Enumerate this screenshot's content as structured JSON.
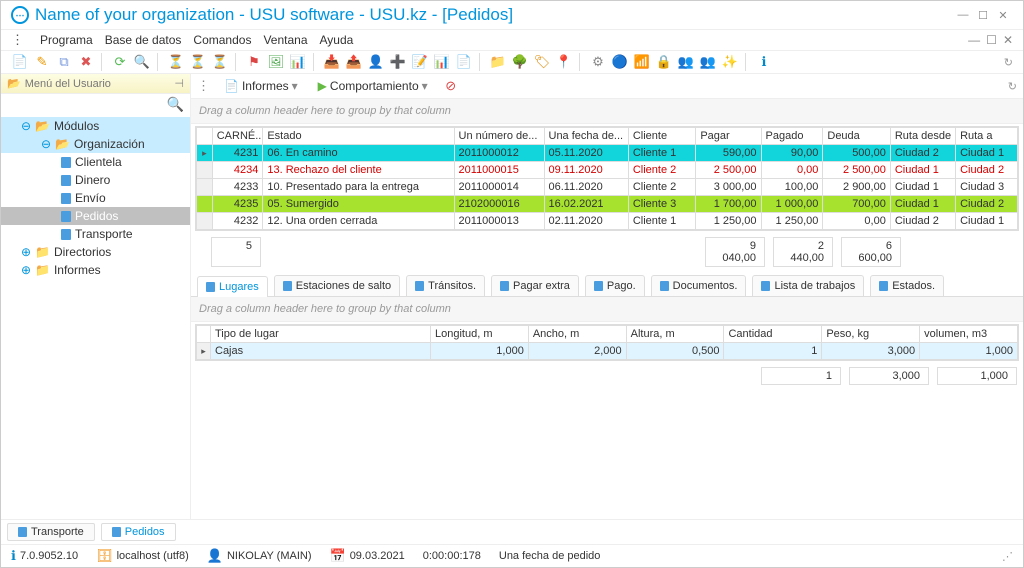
{
  "title": "Name of your organization - USU software - USU.kz - [Pedidos]",
  "menu": {
    "programa": "Programa",
    "basedatos": "Base de datos",
    "comandos": "Comandos",
    "ventana": "Ventana",
    "ayuda": "Ayuda"
  },
  "sidebar": {
    "header": "Menú del Usuario",
    "modulos": "Módulos",
    "organizacion": "Organización",
    "clientela": "Clientela",
    "dinero": "Dinero",
    "envio": "Envío",
    "pedidos": "Pedidos",
    "transporte": "Transporte",
    "directorios": "Directorios",
    "informes": "Informes"
  },
  "actionbar": {
    "informes": "Informes",
    "comport": "Comportamiento"
  },
  "group_hint": "Drag a column header here to group by that column",
  "grid": {
    "cols": {
      "carne": "CARNÉ...",
      "estado": "Estado",
      "numero": "Un número de...",
      "fecha": "Una fecha de...",
      "cliente": "Cliente",
      "pagar": "Pagar",
      "pagado": "Pagado",
      "deuda": "Deuda",
      "rutad": "Ruta desde",
      "rutaa": "Ruta a"
    },
    "rows": [
      {
        "carne": "4231",
        "estado": "06. En camino",
        "numero": "2011000012",
        "fecha": "05.11.2020",
        "cliente": "Cliente 1",
        "pagar": "590,00",
        "pagado": "90,00",
        "deuda": "500,00",
        "rutad": "Ciudad 2",
        "rutaa": "Ciudad 1",
        "cls": "cyan"
      },
      {
        "carne": "4234",
        "estado": "13. Rechazo del cliente",
        "numero": "2011000015",
        "fecha": "09.11.2020",
        "cliente": "Cliente 2",
        "pagar": "2 500,00",
        "pagado": "0,00",
        "deuda": "2 500,00",
        "rutad": "Ciudad 1",
        "rutaa": "Ciudad 2",
        "cls": "red"
      },
      {
        "carne": "4233",
        "estado": "10. Presentado para la entrega",
        "numero": "2011000014",
        "fecha": "06.11.2020",
        "cliente": "Cliente 2",
        "pagar": "3 000,00",
        "pagado": "100,00",
        "deuda": "2 900,00",
        "rutad": "Ciudad 1",
        "rutaa": "Ciudad 3",
        "cls": ""
      },
      {
        "carne": "4235",
        "estado": "05. Sumergido",
        "numero": "2102000016",
        "fecha": "16.02.2021",
        "cliente": "Cliente 3",
        "pagar": "1 700,00",
        "pagado": "1 000,00",
        "deuda": "700,00",
        "rutad": "Ciudad 1",
        "rutaa": "Ciudad 2",
        "cls": "green"
      },
      {
        "carne": "4232",
        "estado": "12. Una orden cerrada",
        "numero": "2011000013",
        "fecha": "02.11.2020",
        "cliente": "Cliente 1",
        "pagar": "1 250,00",
        "pagado": "1 250,00",
        "deuda": "0,00",
        "rutad": "Ciudad 2",
        "rutaa": "Ciudad 1",
        "cls": ""
      }
    ],
    "sum": {
      "count": "5",
      "pagar": "9 040,00",
      "pagado": "2 440,00",
      "deuda": "6 600,00"
    }
  },
  "subtabs": {
    "lugares": "Lugares",
    "estaciones": "Estaciones de salto",
    "transitos": "Tránsitos.",
    "pagarextra": "Pagar extra",
    "pago": "Pago.",
    "documentos": "Documentos.",
    "lista": "Lista de trabajos",
    "estados": "Estados."
  },
  "subgrid": {
    "cols": {
      "tipo": "Tipo de lugar",
      "longitud": "Longitud, m",
      "ancho": "Ancho, m",
      "altura": "Altura, m",
      "cantidad": "Cantidad",
      "peso": "Peso, kg",
      "volumen": "volumen, m3"
    },
    "row": {
      "tipo": "Cajas",
      "longitud": "1,000",
      "ancho": "2,000",
      "altura": "0,500",
      "cantidad": "1",
      "peso": "3,000",
      "volumen": "1,000"
    },
    "sum": {
      "cantidad": "1",
      "peso": "3,000",
      "volumen": "1,000"
    }
  },
  "bottomtabs": {
    "transporte": "Transporte",
    "pedidos": "Pedidos"
  },
  "status": {
    "version": "7.0.9052.10",
    "host": "localhost (utf8)",
    "user": "NIKOLAY (MAIN)",
    "date": "09.03.2021",
    "time": "0:00:00:178",
    "label": "Una fecha de pedido"
  }
}
